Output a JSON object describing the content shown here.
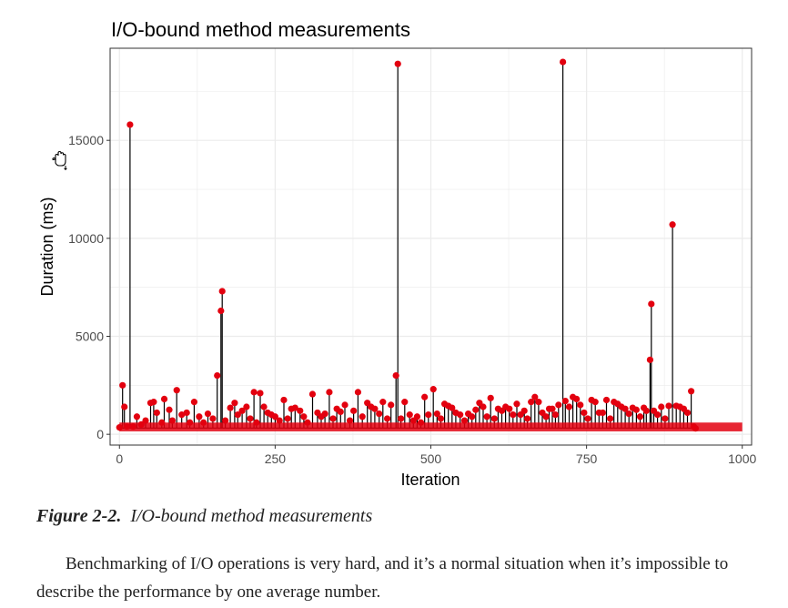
{
  "caption": {
    "figure_label": "Figure 2-2.",
    "figure_title": "I/O-bound method measurements"
  },
  "body_text": "Benchmarking of I/O operations is very hard, and it’s a normal situation when it’s impossible to describe the performance by one average number.",
  "colors": {
    "point": "#e3000f",
    "line": "#000000",
    "grid": "#ebebeb",
    "frame": "#333333"
  },
  "icons": {
    "cursor": "hand-cursor-icon"
  },
  "chart_data": {
    "type": "line",
    "title": "I/O-bound method measurements",
    "xlabel": "Iteration",
    "ylabel": "Duration (ms)",
    "xlim": [
      -15,
      1015
    ],
    "ylim": [
      -550,
      19700
    ],
    "xticks": [
      0,
      250,
      500,
      750,
      1000
    ],
    "yticks": [
      0,
      5000,
      10000,
      15000
    ],
    "grid": true,
    "baseline": 320,
    "series": [
      {
        "points": [
          [
            0,
            350
          ],
          [
            5,
            2500
          ],
          [
            8,
            1400
          ],
          [
            12,
            400
          ],
          [
            17,
            15800
          ],
          [
            22,
            400
          ],
          [
            28,
            900
          ],
          [
            35,
            500
          ],
          [
            42,
            700
          ],
          [
            50,
            1600
          ],
          [
            55,
            1650
          ],
          [
            60,
            1100
          ],
          [
            68,
            600
          ],
          [
            72,
            1800
          ],
          [
            80,
            1250
          ],
          [
            85,
            700
          ],
          [
            92,
            2250
          ],
          [
            100,
            1000
          ],
          [
            108,
            1100
          ],
          [
            113,
            600
          ],
          [
            120,
            1650
          ],
          [
            128,
            900
          ],
          [
            135,
            600
          ],
          [
            142,
            1050
          ],
          [
            150,
            800
          ],
          [
            157,
            3000
          ],
          [
            163,
            6300
          ],
          [
            165,
            7300
          ],
          [
            170,
            700
          ],
          [
            178,
            1350
          ],
          [
            185,
            1600
          ],
          [
            190,
            1000
          ],
          [
            197,
            1200
          ],
          [
            204,
            1400
          ],
          [
            210,
            800
          ],
          [
            216,
            2150
          ],
          [
            220,
            600
          ],
          [
            226,
            2100
          ],
          [
            232,
            1400
          ],
          [
            238,
            1100
          ],
          [
            244,
            1000
          ],
          [
            250,
            900
          ],
          [
            257,
            700
          ],
          [
            264,
            1750
          ],
          [
            270,
            800
          ],
          [
            276,
            1300
          ],
          [
            282,
            1350
          ],
          [
            290,
            1200
          ],
          [
            296,
            900
          ],
          [
            302,
            600
          ],
          [
            310,
            2050
          ],
          [
            318,
            1100
          ],
          [
            324,
            900
          ],
          [
            330,
            1050
          ],
          [
            337,
            2150
          ],
          [
            343,
            800
          ],
          [
            349,
            1300
          ],
          [
            355,
            1150
          ],
          [
            362,
            1500
          ],
          [
            370,
            700
          ],
          [
            376,
            1200
          ],
          [
            383,
            2150
          ],
          [
            390,
            900
          ],
          [
            398,
            1600
          ],
          [
            404,
            1400
          ],
          [
            410,
            1300
          ],
          [
            417,
            1050
          ],
          [
            423,
            1650
          ],
          [
            430,
            800
          ],
          [
            436,
            1500
          ],
          [
            444,
            3000
          ],
          [
            447,
            18900
          ],
          [
            452,
            800
          ],
          [
            458,
            1650
          ],
          [
            466,
            1000
          ],
          [
            472,
            700
          ],
          [
            478,
            900
          ],
          [
            484,
            600
          ],
          [
            490,
            1900
          ],
          [
            496,
            1000
          ],
          [
            504,
            2300
          ],
          [
            510,
            1050
          ],
          [
            516,
            800
          ],
          [
            522,
            1550
          ],
          [
            528,
            1450
          ],
          [
            534,
            1350
          ],
          [
            540,
            1100
          ],
          [
            547,
            1000
          ],
          [
            554,
            700
          ],
          [
            560,
            1050
          ],
          [
            566,
            900
          ],
          [
            572,
            1250
          ],
          [
            578,
            1600
          ],
          [
            584,
            1400
          ],
          [
            590,
            900
          ],
          [
            596,
            1850
          ],
          [
            602,
            800
          ],
          [
            608,
            1300
          ],
          [
            614,
            1200
          ],
          [
            620,
            1400
          ],
          [
            626,
            1300
          ],
          [
            632,
            1000
          ],
          [
            638,
            1550
          ],
          [
            644,
            1000
          ],
          [
            650,
            1200
          ],
          [
            655,
            800
          ],
          [
            661,
            1650
          ],
          [
            667,
            1900
          ],
          [
            673,
            1650
          ],
          [
            679,
            1100
          ],
          [
            685,
            900
          ],
          [
            690,
            1300
          ],
          [
            695,
            1300
          ],
          [
            700,
            1000
          ],
          [
            705,
            1500
          ],
          [
            712,
            19000
          ],
          [
            716,
            1700
          ],
          [
            722,
            1400
          ],
          [
            728,
            1900
          ],
          [
            734,
            1800
          ],
          [
            740,
            1500
          ],
          [
            746,
            1100
          ],
          [
            752,
            800
          ],
          [
            758,
            1750
          ],
          [
            764,
            1650
          ],
          [
            770,
            1100
          ],
          [
            776,
            1100
          ],
          [
            782,
            1750
          ],
          [
            788,
            800
          ],
          [
            794,
            1650
          ],
          [
            800,
            1550
          ],
          [
            806,
            1400
          ],
          [
            812,
            1300
          ],
          [
            818,
            1050
          ],
          [
            824,
            1350
          ],
          [
            830,
            1250
          ],
          [
            836,
            900
          ],
          [
            842,
            1350
          ],
          [
            846,
            1200
          ],
          [
            852,
            3800
          ],
          [
            854,
            6650
          ],
          [
            858,
            1200
          ],
          [
            864,
            1000
          ],
          [
            870,
            1400
          ],
          [
            876,
            800
          ],
          [
            882,
            1450
          ],
          [
            888,
            10700
          ],
          [
            894,
            1450
          ],
          [
            900,
            1400
          ],
          [
            906,
            1300
          ],
          [
            912,
            1100
          ],
          [
            918,
            2200
          ],
          [
            922,
            400
          ],
          [
            925,
            300
          ]
        ]
      }
    ]
  }
}
